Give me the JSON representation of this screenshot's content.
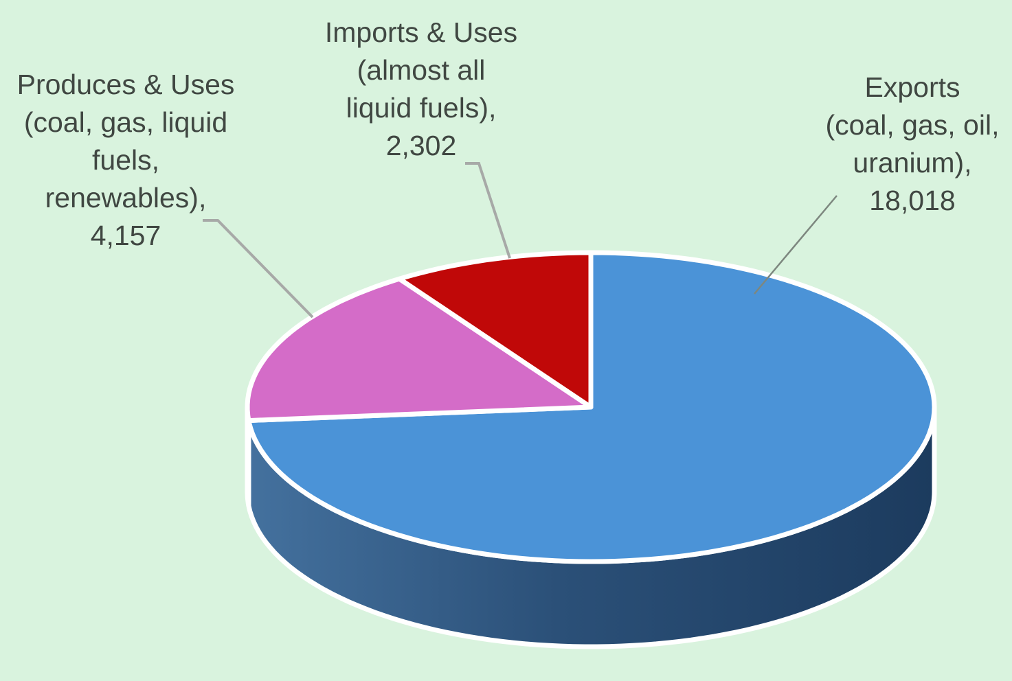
{
  "background_color": "#d9f3de",
  "chart_data": {
    "type": "pie",
    "projection": "3d",
    "title": "",
    "total": 24477,
    "start_angle_deg": 0,
    "direction": "clockwise",
    "legend": "none",
    "slice_border_color": "#ffffff",
    "label_color": "#404742",
    "leader_line_color": "#a7a9a7",
    "slices": [
      {
        "name": "exports",
        "category": "Exports (coal, gas, oil, uranium)",
        "value": 18018,
        "value_text": "18,018",
        "color": "#4b93d7",
        "label": "Exports\n(coal, gas, oil,\nuranium),\n18,018"
      },
      {
        "name": "produces",
        "category": "Produces & Uses (coal, gas, liquid fuels, renewables)",
        "value": 4157,
        "value_text": "4,157",
        "color": "#d46cc8",
        "label": "Produces & Uses\n(coal, gas, liquid\nfuels,\nrenewables),\n4,157"
      },
      {
        "name": "imports",
        "category": "Imports & Uses (almost all liquid fuels)",
        "value": 2302,
        "value_text": "2,302",
        "color": "#c00808",
        "label": "Imports & Uses\n(almost all\nliquid fuels),\n2,302"
      }
    ]
  }
}
